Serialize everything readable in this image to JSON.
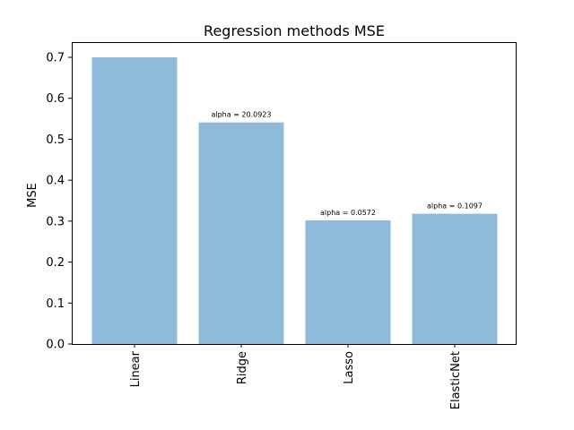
{
  "chart_data": {
    "type": "bar",
    "title": "Regression methods MSE",
    "xlabel": "",
    "ylabel": "MSE",
    "categories": [
      "Linear",
      "Ridge",
      "Lasso",
      "ElasticNet"
    ],
    "values": [
      0.7,
      0.541,
      0.302,
      0.318
    ],
    "annotations": [
      "",
      "alpha = 20.0923",
      "alpha = 0.0572",
      "alpha = 0.1097"
    ],
    "ylim": [
      0,
      0.7
    ],
    "yticks": [
      "0.0",
      "0.1",
      "0.2",
      "0.3",
      "0.4",
      "0.5",
      "0.6",
      "0.7"
    ],
    "bar_color": "#8fbad9",
    "grid": false,
    "legend": "none"
  }
}
